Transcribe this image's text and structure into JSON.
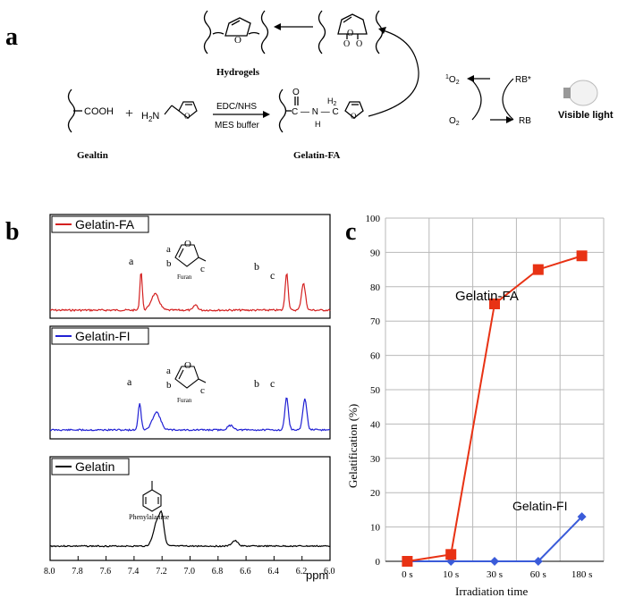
{
  "panel_a": {
    "letter": "a",
    "labels": {
      "hydrogels": "Hydrogels",
      "gealtin": "Gealtin",
      "gelatin_fa": "Gelatin-FA",
      "cooh": "COOH",
      "h2n": "H",
      "h2n_sub": "2",
      "h2n_n": "N",
      "reagent_top": "EDC/NHS",
      "reagent_bottom": "MES buffer",
      "plus": "+",
      "amide": "C — N — C",
      "o": "O",
      "h": "H",
      "h2": "H",
      "h2_sub": "2",
      "singlet_o2_sup": "1",
      "singlet_o2": "O",
      "singlet_o2_sub": "2",
      "o2": "O",
      "o2_sub": "2",
      "rb_star": "RB*",
      "rb": "RB",
      "visible_light": "Visible light"
    }
  },
  "panel_b": {
    "letter": "b",
    "xaxis": {
      "ticks": [
        "8.0",
        "7.8",
        "7.6",
        "7.4",
        "7.2",
        "7.0",
        "6.8",
        "6.6",
        "6.4",
        "6.2",
        "6.0"
      ],
      "unit": "ppm"
    },
    "spectra": [
      {
        "legend": "Gelatin-FA",
        "color": "#d42020",
        "peak_labels": [
          "a",
          "b",
          "c"
        ],
        "struct_labels": {
          "a": "a",
          "b": "b",
          "c": "c",
          "o": "O",
          "name": "Furan"
        }
      },
      {
        "legend": "Gelatin-FI",
        "color": "#2020d4",
        "peak_labels": [
          "a",
          "b",
          "c"
        ],
        "struct_labels": {
          "a": "a",
          "b": "b",
          "c": "c",
          "o": "O",
          "name": "Furan"
        }
      },
      {
        "legend": "Gelatin",
        "color": "#000000",
        "struct_labels": {
          "name": "Phenylalanine"
        }
      }
    ]
  },
  "chart_data": {
    "type": "line",
    "title": "",
    "xlabel": "Irradiation time",
    "ylabel": "Gelatification (%)",
    "categories": [
      "0 s",
      "10 s",
      "30 s",
      "60 s",
      "180 s"
    ],
    "ylim": [
      0,
      100
    ],
    "yticks": [
      "0",
      "10",
      "20",
      "30",
      "40",
      "50",
      "60",
      "70",
      "80",
      "90",
      "100"
    ],
    "grid": true,
    "series": [
      {
        "name": "Gelatin-FA",
        "color": "#e83214",
        "marker": "square",
        "values": [
          0,
          2,
          75,
          85,
          89
        ]
      },
      {
        "name": "Gelatin-FI",
        "color": "#3a5bd9",
        "marker": "diamond",
        "values": [
          0,
          0,
          0,
          0,
          13
        ]
      }
    ],
    "panel_letter": "c"
  }
}
